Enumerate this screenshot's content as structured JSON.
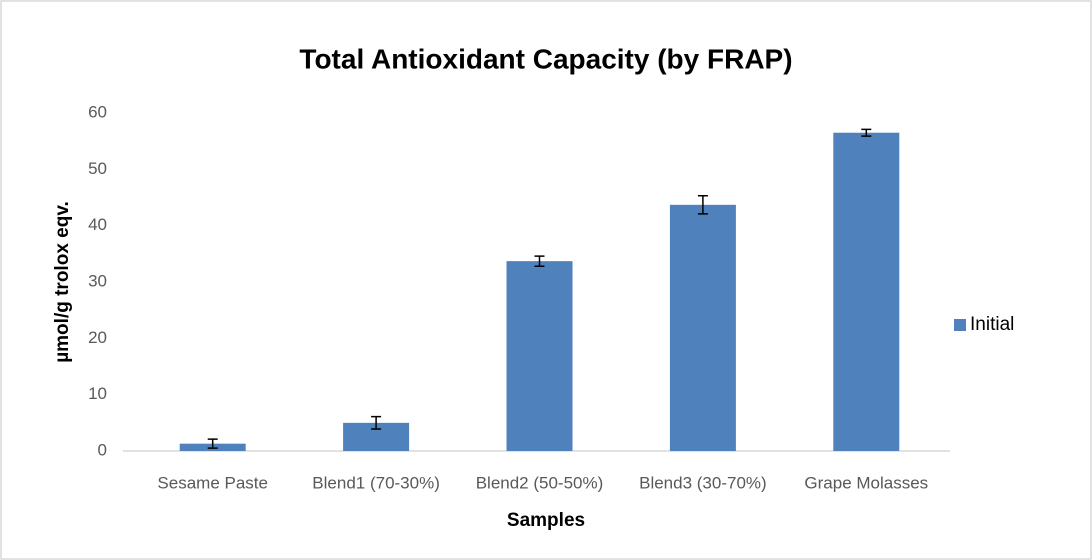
{
  "chart_data": {
    "type": "bar",
    "title": "Total Antioxidant Capacity (by FRAP)",
    "x_label": "Samples",
    "y_label": "µmol/g  trolox eqv.",
    "categories": [
      "Sesame Paste",
      "Blend1 (70-30%)",
      "Blend2 (50-50%)",
      "Blend3 (30-70%)",
      "Grape Molasses"
    ],
    "series": [
      {
        "name": "Initial",
        "color": "#4f81bd",
        "values": [
          1.3,
          5.0,
          33.7,
          43.7,
          56.5
        ],
        "errors": [
          0.8,
          1.1,
          0.9,
          1.6,
          0.6
        ]
      }
    ],
    "ylim": [
      0,
      60
    ],
    "yticks": [
      0,
      10,
      20,
      30,
      40,
      50,
      60
    ],
    "grid": false,
    "legend": "right"
  }
}
